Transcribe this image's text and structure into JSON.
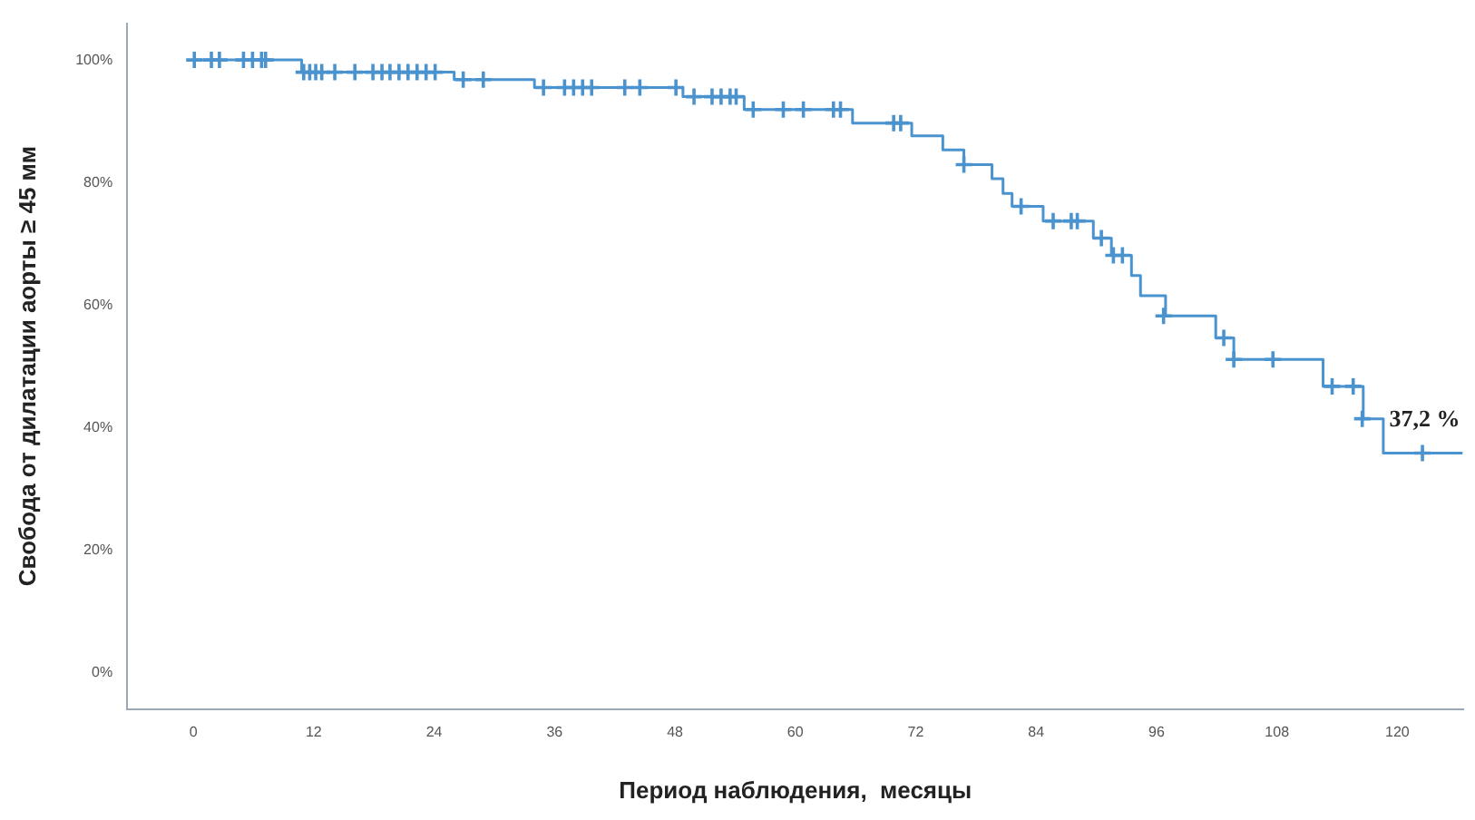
{
  "chart_data": {
    "type": "step",
    "xlabel": "Период наблюдения,  месяцы",
    "ylabel": "Свобода от дилатации аорты ≥ 45 мм",
    "annotations": [
      "37,2 %"
    ],
    "xlim": [
      -6.6,
      126.6
    ],
    "xticks": [
      0,
      12,
      24,
      36,
      48,
      60,
      72,
      84,
      96,
      108,
      120
    ],
    "ylim": [
      -6,
      106
    ],
    "yticks": [
      {
        "value": 0,
        "label": "0%"
      },
      {
        "value": 20,
        "label": "20%"
      },
      {
        "value": 40,
        "label": "40%"
      },
      {
        "value": 60,
        "label": "60%"
      },
      {
        "value": 80,
        "label": "80%"
      },
      {
        "value": 100,
        "label": "100%"
      }
    ],
    "grid": false,
    "legend": false,
    "series": [
      {
        "color": "#4a93cf",
        "x": [
          0,
          10.8,
          26,
          34,
          48.8,
          54.9,
          65.7,
          71.6,
          74.7,
          76.8,
          79.6,
          80.7,
          81.6,
          84.7,
          89.7,
          91.5,
          93.5,
          94.4,
          96.9,
          101.9,
          103.7,
          112.6,
          116.6,
          118.6,
          126.5
        ],
        "values": [
          100,
          98,
          96.8,
          95.5,
          94,
          91.9,
          89.7,
          87.6,
          85.3,
          82.9,
          80.6,
          78.2,
          76.1,
          73.7,
          70.9,
          68.1,
          64.8,
          61.5,
          58.2,
          54.6,
          51.1,
          46.7,
          41.4,
          35.8,
          35.8
        ]
      },
      {
        "type": "scatter",
        "marker": "cross",
        "color": "#4a93cf",
        "x": [
          0.1,
          1.8,
          2.6,
          5,
          5.9,
          6.8,
          7.2,
          11,
          11.6,
          12.2,
          12.8,
          14.1,
          16.1,
          17.9,
          18.8,
          19.6,
          20.5,
          21.4,
          22.3,
          23.2,
          24.1,
          26.9,
          28.9,
          34.9,
          37,
          37.9,
          38.8,
          39.7,
          43,
          44.5,
          48.1,
          49.9,
          51.7,
          52.6,
          53.5,
          54.1,
          55.8,
          58.8,
          60.8,
          63.8,
          64.5,
          69.8,
          70.5,
          76.8,
          82.5,
          85.7,
          87.5,
          88.1,
          90.5,
          91.7,
          92.6,
          96.7,
          102.7,
          103.7,
          107.6,
          113.5,
          115.6,
          116.5,
          122.5
        ],
        "values": [
          100,
          100,
          100,
          100,
          100,
          100,
          100,
          98,
          98,
          98,
          98,
          98,
          98,
          98,
          98,
          98,
          98,
          98,
          98,
          98,
          98,
          96.8,
          96.8,
          95.5,
          95.5,
          95.5,
          95.5,
          95.5,
          95.5,
          95.5,
          95.5,
          94,
          94,
          94,
          94,
          94,
          91.9,
          91.9,
          91.9,
          91.9,
          91.9,
          89.7,
          89.7,
          82.9,
          76.1,
          73.7,
          73.7,
          73.7,
          70.9,
          68.1,
          68.1,
          58.2,
          54.6,
          51.1,
          51.1,
          46.7,
          46.7,
          41.4,
          35.8
        ]
      }
    ]
  }
}
